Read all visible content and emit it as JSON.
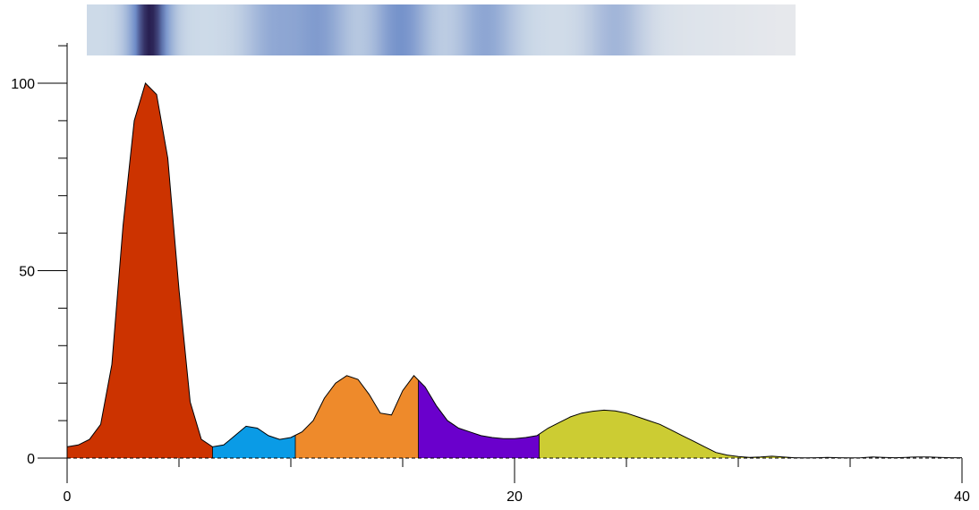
{
  "chart_data": {
    "type": "area",
    "title": "",
    "xlabel": "",
    "ylabel": "",
    "xlim": [
      0,
      40
    ],
    "ylim": [
      0,
      110
    ],
    "x_ticks": [
      0,
      20,
      40
    ],
    "x_minor_ticks": [
      5,
      10,
      15,
      25,
      30,
      35
    ],
    "y_ticks": [
      0,
      50,
      100
    ],
    "y_minor_ticks": [
      10,
      20,
      30,
      40,
      60,
      70,
      80,
      90,
      110
    ],
    "grid": false,
    "baseline": 0,
    "baseline_style": "dashed",
    "x": [
      0,
      0.5,
      1,
      1.5,
      2,
      2.5,
      3,
      3.5,
      4,
      4.5,
      5,
      5.5,
      6,
      6.5,
      7,
      7.5,
      8,
      8.5,
      9,
      9.5,
      10,
      10.5,
      11,
      11.5,
      12,
      12.5,
      13,
      13.5,
      14,
      14.5,
      15,
      15.5,
      16,
      16.5,
      17,
      17.5,
      18,
      18.5,
      19,
      19.5,
      20,
      20.5,
      21,
      21.5,
      22,
      22.5,
      23,
      23.5,
      24,
      24.5,
      25,
      25.5,
      26,
      26.5,
      27,
      27.5,
      28,
      28.5,
      29,
      29.5,
      30,
      30.5,
      31,
      31.5,
      32,
      32.5,
      33,
      33.5,
      34,
      34.5,
      35,
      35.5,
      36,
      36.5,
      37,
      37.5,
      38,
      38.5,
      39,
      39.5,
      40
    ],
    "y": [
      3,
      3.5,
      5,
      9,
      25,
      62,
      90,
      100,
      97,
      80,
      45,
      15,
      5,
      3,
      3.5,
      6,
      8.5,
      8,
      6,
      5,
      5.5,
      7,
      10,
      16,
      20,
      22,
      21,
      17,
      12,
      11.5,
      18,
      22,
      19,
      14,
      10,
      8,
      7,
      6,
      5.5,
      5.2,
      5.2,
      5.5,
      6,
      8,
      9.5,
      11,
      12,
      12.5,
      12.8,
      12.6,
      12,
      11,
      10,
      9,
      7.5,
      6,
      4.5,
      3,
      1.5,
      0.8,
      0.4,
      0.2,
      0.3,
      0.5,
      0.3,
      0.1,
      0.05,
      0.1,
      0.2,
      0.1,
      0.05,
      0.1,
      0.3,
      0.2,
      0.1,
      0.2,
      0.3,
      0.3,
      0.2,
      0.1,
      0.1
    ],
    "segments": [
      {
        "x_start": 0,
        "x_end": 6.5,
        "color": "#cc3300"
      },
      {
        "x_start": 6.5,
        "x_end": 10.2,
        "color": "#0a9be6"
      },
      {
        "x_start": 10.2,
        "x_end": 15.7,
        "color": "#ee8a2b"
      },
      {
        "x_start": 15.7,
        "x_end": 21.1,
        "color": "#6a00cc"
      },
      {
        "x_start": 21.1,
        "x_end": 33,
        "color": "#cccc33"
      }
    ],
    "gel_strip_bands": [
      {
        "x": 3.7,
        "strength": 1.0
      },
      {
        "x": 9.2,
        "strength": 0.35
      },
      {
        "x": 11.3,
        "strength": 0.45
      },
      {
        "x": 14.9,
        "strength": 0.55
      },
      {
        "x": 18.7,
        "strength": 0.4
      },
      {
        "x": 24.5,
        "strength": 0.3
      }
    ]
  }
}
